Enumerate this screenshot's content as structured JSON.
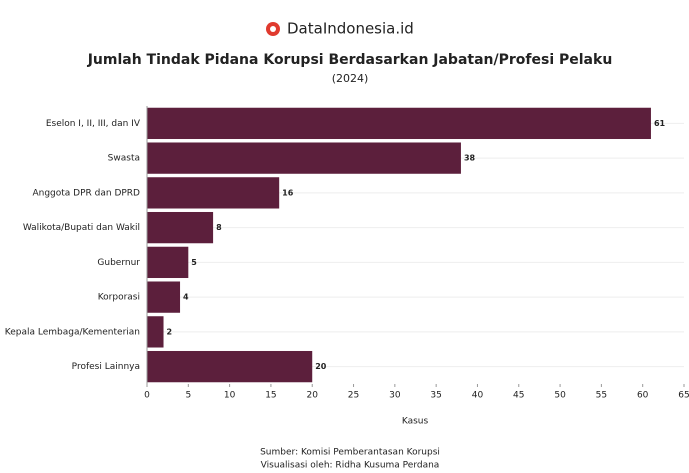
{
  "brand": "DataIndonesia.id",
  "chart_data": {
    "type": "bar",
    "orientation": "horizontal",
    "title": "Jumlah Tindak Pidana Korupsi Berdasarkan Jabatan/Profesi Pelaku",
    "subtitle": "(2024)",
    "categories": [
      "Eselon I, II, III, dan IV",
      "Swasta",
      "Anggota DPR dan DPRD",
      "Walikota/Bupati dan Wakil",
      "Gubernur",
      "Korporasi",
      "Kepala Lembaga/Kementerian",
      "Profesi Lainnya"
    ],
    "values": [
      61,
      38,
      16,
      8,
      5,
      4,
      2,
      20
    ],
    "color": "#5c1f3c",
    "xlim": [
      0,
      65
    ],
    "xticks": [
      0,
      5,
      10,
      15,
      20,
      25,
      30,
      35,
      40,
      45,
      50,
      55,
      60,
      65
    ],
    "xlabel": "Kasus"
  },
  "source": [
    "Sumber: Komisi Pemberantasan Korupsi",
    "Visualisasi oleh: Ridha Kusuma Perdana"
  ]
}
